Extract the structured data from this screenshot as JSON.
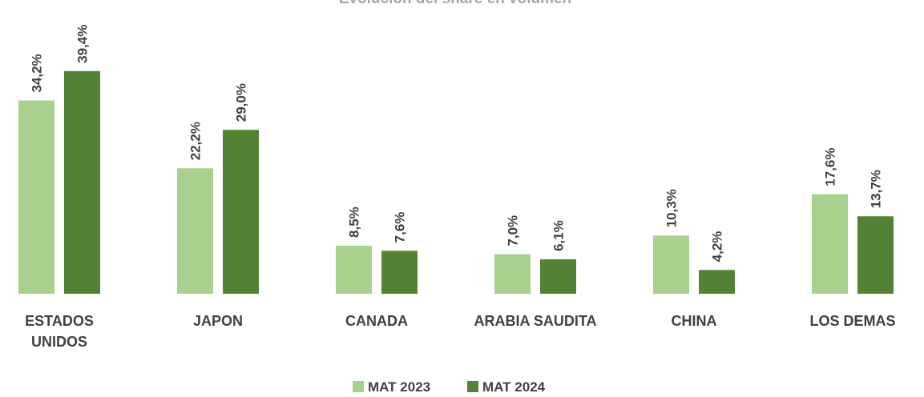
{
  "chart_data": {
    "type": "bar",
    "title": "Evolución del share en volumen",
    "categories": [
      "ESTADOS UNIDOS",
      "JAPON",
      "CANADA",
      "ARABIA SAUDITA",
      "CHINA",
      "LOS DEMAS"
    ],
    "series": [
      {
        "name": "MAT 2023",
        "color": "#a9d18e",
        "values": [
          34.2,
          22.2,
          8.5,
          7.0,
          10.3,
          17.6
        ],
        "value_labels": [
          "34,2%",
          "22,2%",
          "8,5%",
          "7,0%",
          "10,3%",
          "17,6%"
        ]
      },
      {
        "name": "MAT 2024",
        "color": "#548235",
        "values": [
          39.4,
          29.0,
          7.6,
          6.1,
          4.2,
          13.7
        ],
        "value_labels": [
          "39,4%",
          "29,0%",
          "7,6%",
          "6,1%",
          "4,2%",
          "13,7%"
        ]
      }
    ]
  }
}
